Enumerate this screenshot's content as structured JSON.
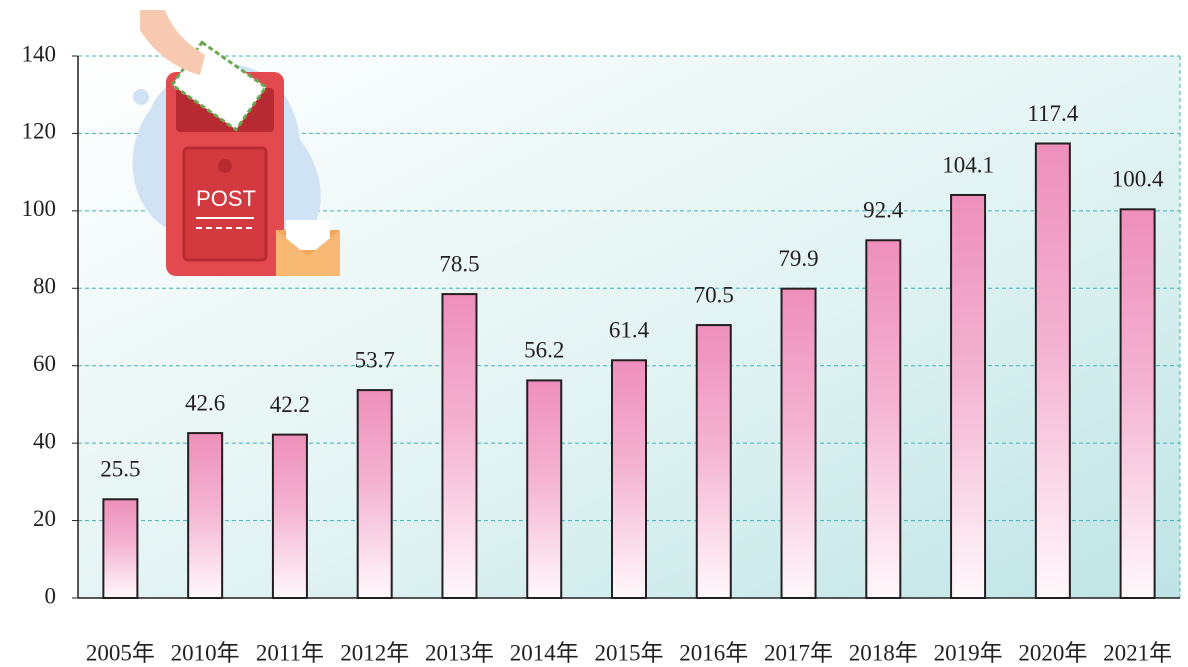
{
  "chart_data": {
    "type": "bar",
    "categories": [
      "2005年",
      "2010年",
      "2011年",
      "2012年",
      "2013年",
      "2014年",
      "2015年",
      "2016年",
      "2017年",
      "2018年",
      "2019年",
      "2020年",
      "2021年"
    ],
    "values": [
      25.5,
      42.6,
      42.2,
      53.7,
      78.5,
      56.2,
      61.4,
      70.5,
      79.9,
      92.4,
      104.1,
      117.4,
      100.4
    ],
    "color": "#ee8fba",
    "ylim": [
      0,
      140
    ],
    "yticks": [
      0,
      20,
      40,
      60,
      80,
      100,
      120,
      140
    ],
    "grid": true
  },
  "illustration": {
    "label": "POST"
  }
}
